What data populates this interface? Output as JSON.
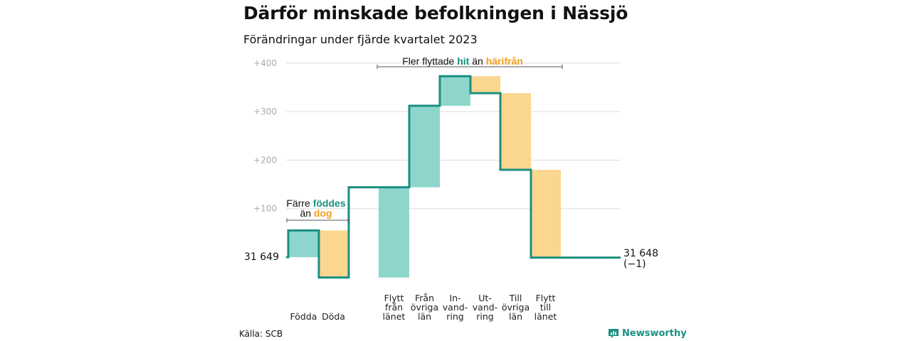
{
  "header": {
    "title": "Därför minskade befolkningen i Nässjö",
    "subtitle": "Förändringar under fjärde kvartalet 2023"
  },
  "colors": {
    "increase_fill": "#8ed6cc",
    "decrease_fill": "#fad68f",
    "step_line": "#1a8f80",
    "highlight_teal": "#1a8f80",
    "highlight_orange": "#f0a020",
    "grid": "#dddddd",
    "tick_text": "#aaaaaa"
  },
  "chart_data": {
    "type": "waterfall",
    "baseline_label": "31  649",
    "end_label": "31 648",
    "end_change": "(−1)",
    "ylim": [
      -45,
      400
    ],
    "yticks": [
      {
        "value": 100,
        "label": "+100"
      },
      {
        "value": 200,
        "label": "+200"
      },
      {
        "value": 300,
        "label": "+300"
      },
      {
        "value": 400,
        "label": "+400"
      }
    ],
    "grid": true,
    "steps": [
      {
        "lines": [
          "Födda"
        ],
        "value": 55
      },
      {
        "lines": [
          "Döda"
        ],
        "value": -97
      },
      {
        "lines": [
          "Flytt",
          "från",
          "länet"
        ],
        "value": 186
      },
      {
        "lines": [
          "Från",
          "övriga",
          "län"
        ],
        "value": 168
      },
      {
        "lines": [
          "In-",
          "vand-",
          "ring"
        ],
        "value": 61
      },
      {
        "lines": [
          "Ut-",
          "vand-",
          "ring"
        ],
        "value": -35
      },
      {
        "lines": [
          "Till",
          "övriga",
          "län"
        ],
        "value": -158
      },
      {
        "lines": [
          "Flytt",
          "till",
          "länet"
        ],
        "value": -181
      }
    ],
    "annotations": [
      {
        "parts": [
          {
            "text": "Färre ",
            "style": "plain"
          },
          {
            "text": "föddes",
            "style": "teal"
          }
        ],
        "parts2": [
          {
            "text": "än ",
            "style": "plain"
          },
          {
            "text": "dog",
            "style": "orange"
          }
        ]
      },
      {
        "parts": [
          {
            "text": "Fler flyttade ",
            "style": "plain"
          },
          {
            "text": "hit",
            "style": "teal"
          },
          {
            "text": " än ",
            "style": "plain"
          },
          {
            "text": "härifrån",
            "style": "orange"
          }
        ]
      }
    ]
  },
  "footer": {
    "source": "Källa: SCB",
    "brand": "Newsworthy"
  }
}
